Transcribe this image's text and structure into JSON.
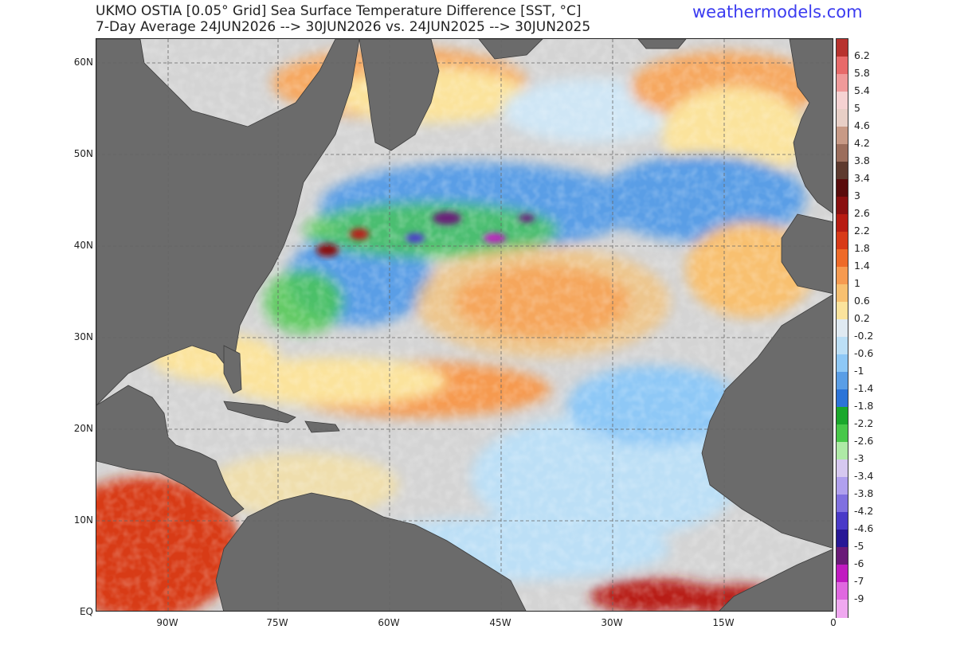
{
  "header": {
    "title_line1": "UKMO OSTIA [0.05° Grid] Sea Surface Temperature  Difference [SST, °C]",
    "title_line2": "7-Day Average 24JUN2026 --> 30JUN2026  vs. 24JUN2025 --> 30JUN2025",
    "brand": "weathermodels.com"
  },
  "map": {
    "lat_labels": [
      "60N",
      "50N",
      "40N",
      "30N",
      "20N",
      "10N",
      "EQ"
    ],
    "lon_labels": [
      "90W",
      "75W",
      "60W",
      "45W",
      "30W",
      "15W",
      "0"
    ]
  },
  "colorbar": {
    "labels": [
      "6.2",
      "5.8",
      "5.4",
      "5",
      "4.6",
      "4.2",
      "3.8",
      "3.4",
      "3",
      "2.6",
      "2.2",
      "1.8",
      "1.4",
      "1",
      "0.6",
      "0.2",
      "-0.2",
      "-0.6",
      "-1",
      "-1.4",
      "-1.8",
      "-2.2",
      "-2.6",
      "-3",
      "-3.4",
      "-3.8",
      "-4.2",
      "-4.6",
      "-5",
      "-6",
      "-7",
      "-9"
    ],
    "colors": [
      "#b8322e",
      "#e86a6a",
      "#f09a9a",
      "#f6d2d2",
      "#e8cfc6",
      "#c89a86",
      "#9c6e5c",
      "#5e3a2e",
      "#5a0c0c",
      "#8a1010",
      "#b81c12",
      "#d83a18",
      "#ee6a28",
      "#f69a50",
      "#f8c070",
      "#fbe39c",
      "#e0eaf2",
      "#bcdff6",
      "#8ec8f6",
      "#5a9ee6",
      "#2c74d8",
      "#1aa82c",
      "#48c84a",
      "#aeeaa6",
      "#d6c8f0",
      "#b0a0ee",
      "#8070e0",
      "#4a3ac8",
      "#281896",
      "#6a1a78",
      "#c01ac0",
      "#e068e0",
      "#f0a8f0"
    ]
  }
}
